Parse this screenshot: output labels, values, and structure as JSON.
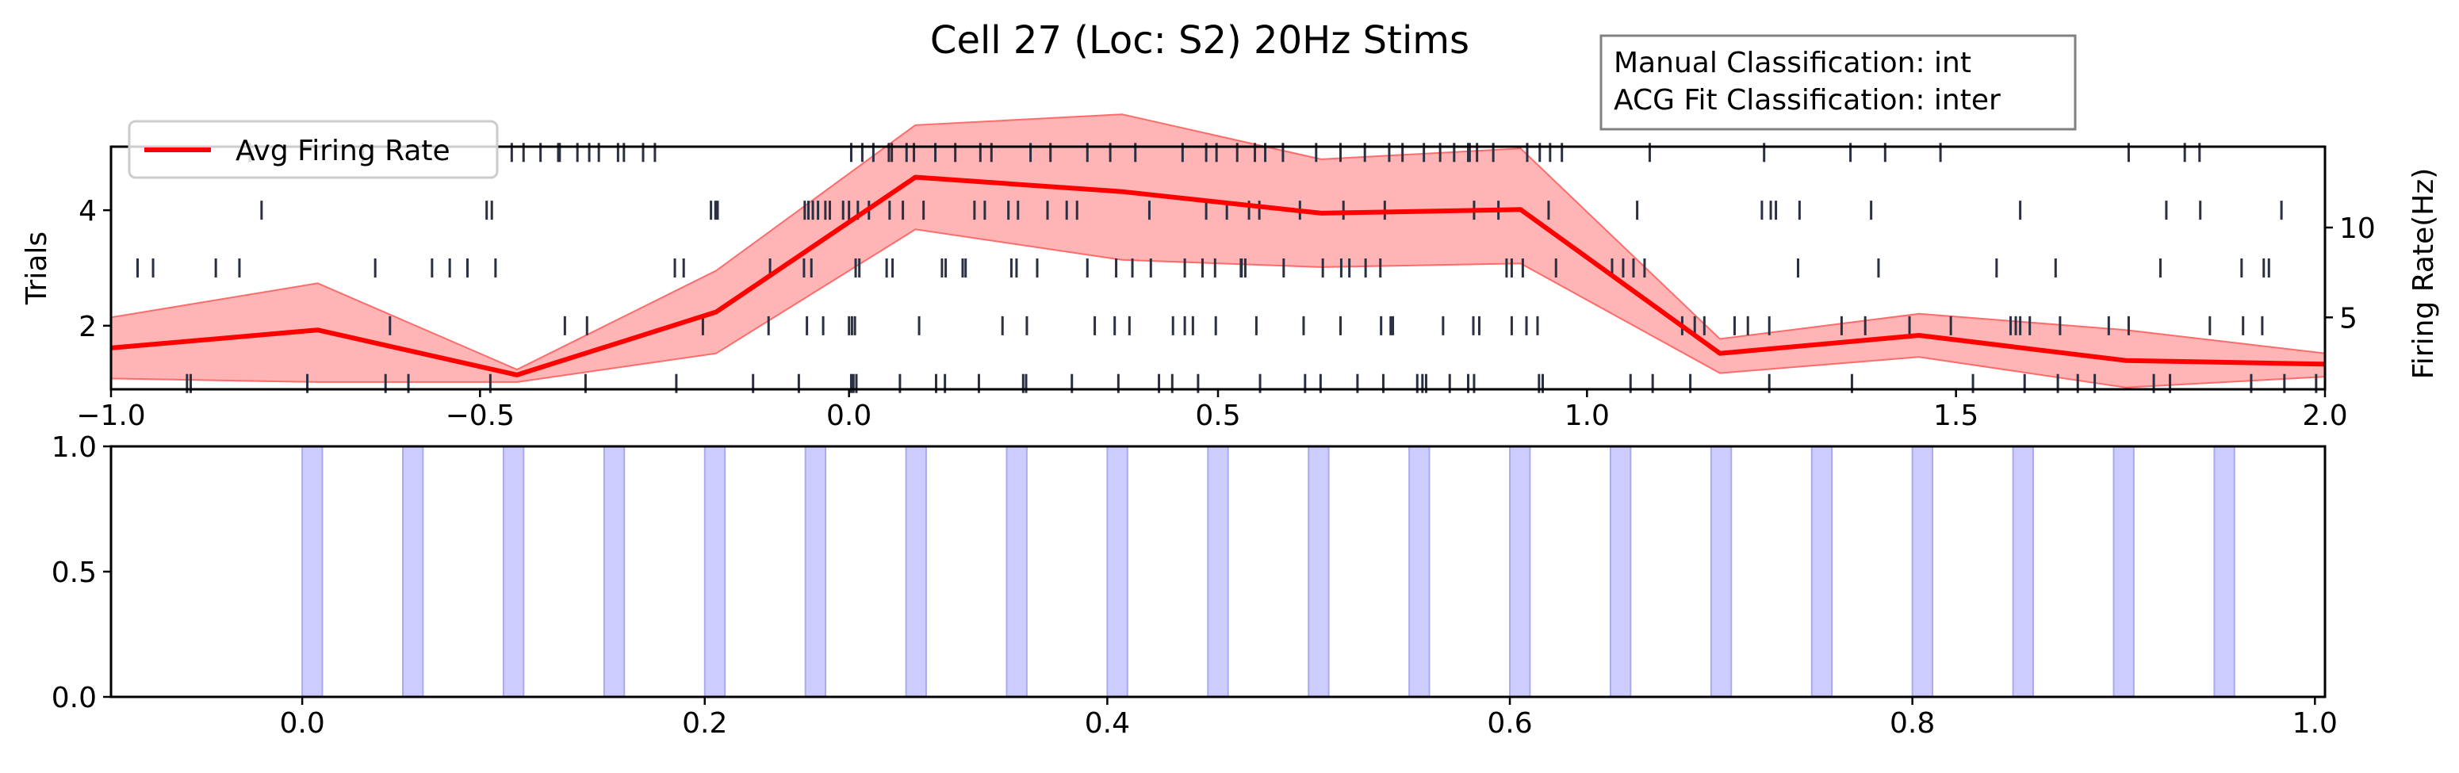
{
  "chart_data": [
    {
      "type": "line",
      "title": "Cell 27 (Loc: S2) 20Hz Stims",
      "annotation": [
        "Manual Classification: int",
        "ACG Fit Classification: inter"
      ],
      "xlim": [
        -1.0,
        2.0
      ],
      "x_ticks": [
        -1.0,
        -0.5,
        0.0,
        0.5,
        1.0,
        1.5,
        2.0
      ],
      "x_tick_labels": [
        "−1.0",
        "−0.5",
        "0.0",
        "0.5",
        "1.0",
        "1.5",
        "2.0"
      ],
      "ylabel_left": "Trials",
      "ylim_left": [
        0.9,
        5.1
      ],
      "y_left_ticks": [
        2,
        4
      ],
      "ylabel_right": "Firing Rate(Hz)",
      "ylim_right": [
        1.0,
        14.5
      ],
      "y_right_ticks": [
        5,
        10
      ],
      "legend": {
        "label": "Avg Firing Rate",
        "placement": "top-left"
      },
      "series": [
        {
          "name": "Avg Firing Rate",
          "color": "#ff0000",
          "x": [
            -1.0,
            -0.72,
            -0.45,
            -0.18,
            0.09,
            0.37,
            0.64,
            0.91,
            1.18,
            1.45,
            1.73,
            2.0
          ],
          "y": [
            3.3,
            4.3,
            1.8,
            5.3,
            12.8,
            12.0,
            10.8,
            11.0,
            3.0,
            4.0,
            2.6,
            2.4
          ],
          "upper": [
            5.0,
            6.9,
            2.1,
            7.6,
            15.7,
            16.3,
            13.8,
            14.4,
            3.8,
            5.2,
            4.3,
            3.0
          ],
          "lower": [
            1.6,
            1.4,
            1.4,
            3.0,
            9.9,
            8.2,
            7.8,
            8.0,
            1.9,
            2.8,
            1.1,
            1.7
          ],
          "band_color": "#ff6b6b"
        }
      ],
      "raster": {
        "color": "#2b2f42",
        "trials": [
          {
            "trial": 1,
            "spikes": [
              -0.897,
              -0.892,
              -0.734,
              -0.628,
              -0.597,
              -0.486,
              -0.357,
              -0.234,
              -0.13,
              -0.068,
              0.003,
              0.006,
              0.01,
              0.069,
              0.118,
              0.13,
              0.176,
              0.236,
              0.24,
              0.302,
              0.365,
              0.42,
              0.438,
              0.473,
              0.557,
              0.618,
              0.639,
              0.689,
              0.724,
              0.77,
              0.777,
              0.782,
              0.814,
              0.839,
              0.847,
              0.935,
              0.94,
              1.059,
              1.089,
              1.14,
              1.247,
              1.359,
              1.523,
              1.593,
              1.638,
              1.665,
              1.688,
              1.768,
              1.79,
              1.9,
              1.945,
              1.988
            ]
          },
          {
            "trial": 2,
            "spikes": [
              -0.622,
              -0.385,
              -0.355,
              -0.198,
              -0.109,
              -0.057,
              -0.035,
              0.0,
              0.004,
              0.008,
              0.095,
              0.208,
              0.241,
              0.333,
              0.36,
              0.38,
              0.439,
              0.455,
              0.466,
              0.497,
              0.552,
              0.616,
              0.666,
              0.721,
              0.734,
              0.737,
              0.805,
              0.846,
              0.854,
              0.898,
              0.918,
              0.933,
              1.129,
              1.146,
              1.159,
              1.2,
              1.218,
              1.247,
              1.345,
              1.377,
              1.437,
              1.493,
              1.574,
              1.581,
              1.587,
              1.6,
              1.641,
              1.707,
              1.734,
              1.844,
              1.889,
              1.915
            ]
          },
          {
            "trial": 3,
            "spikes": [
              -0.964,
              -0.943,
              -0.858,
              -0.826,
              -0.642,
              -0.565,
              -0.541,
              -0.517,
              -0.479,
              -0.236,
              -0.224,
              -0.107,
              -0.061,
              -0.051,
              0.009,
              0.014,
              0.051,
              0.059,
              0.126,
              0.131,
              0.154,
              0.158,
              0.22,
              0.227,
              0.255,
              0.323,
              0.362,
              0.384,
              0.409,
              0.455,
              0.479,
              0.496,
              0.531,
              0.532,
              0.537,
              0.589,
              0.642,
              0.667,
              0.678,
              0.7,
              0.72,
              0.891,
              0.898,
              0.913,
              0.958,
              1.034,
              1.049,
              1.063,
              1.078,
              1.286,
              1.395,
              1.555,
              1.635,
              1.777,
              1.887,
              1.917,
              1.924
            ]
          },
          {
            "trial": 4,
            "spikes": [
              -0.796,
              -0.491,
              -0.484,
              -0.187,
              -0.181,
              -0.178,
              -0.06,
              -0.055,
              -0.049,
              -0.042,
              -0.032,
              -0.026,
              -0.008,
              0.0,
              0.012,
              0.027,
              0.055,
              0.073,
              0.101,
              0.17,
              0.184,
              0.216,
              0.229,
              0.269,
              0.295,
              0.309,
              0.407,
              0.484,
              0.512,
              0.542,
              0.556,
              0.611,
              0.67,
              0.726,
              0.847,
              0.88,
              0.948,
              1.068,
              1.237,
              1.249,
              1.256,
              1.288,
              1.385,
              1.587,
              1.785,
              1.831,
              1.941
            ]
          },
          {
            "trial": 5,
            "spikes": [
              -0.812,
              -0.659,
              -0.457,
              -0.441,
              -0.418,
              -0.394,
              -0.392,
              -0.368,
              -0.352,
              -0.339,
              -0.313,
              -0.305,
              -0.279,
              -0.263,
              0.003,
              0.018,
              0.033,
              0.054,
              0.058,
              0.078,
              0.088,
              0.117,
              0.144,
              0.178,
              0.193,
              0.246,
              0.273,
              0.323,
              0.354,
              0.388,
              0.452,
              0.484,
              0.498,
              0.526,
              0.55,
              0.564,
              0.588,
              0.633,
              0.666,
              0.699,
              0.732,
              0.75,
              0.779,
              0.801,
              0.82,
              0.839,
              0.841,
              0.851,
              0.873,
              0.919,
              0.936,
              0.95,
              0.966,
              1.085,
              1.24,
              1.357,
              1.404,
              1.479,
              1.734,
              1.81,
              1.83
            ]
          }
        ]
      }
    },
    {
      "type": "bar",
      "title": "",
      "xlim": [
        -0.095,
        1.005
      ],
      "x_ticks": [
        0.0,
        0.2,
        0.4,
        0.6,
        0.8,
        1.0
      ],
      "x_tick_labels": [
        "0.0",
        "0.2",
        "0.4",
        "0.6",
        "0.8",
        "1.0"
      ],
      "ylim": [
        0.0,
        1.0
      ],
      "y_ticks": [
        0.0,
        0.5,
        1.0
      ],
      "y_tick_labels": [
        "0.0",
        "0.5",
        "1.0"
      ],
      "stimulus_width": 0.01,
      "stimulus_color": "#ccccff",
      "stimulus_starts": [
        0.0,
        0.05,
        0.1,
        0.15,
        0.2,
        0.25,
        0.3,
        0.35,
        0.4,
        0.45,
        0.5,
        0.55,
        0.6,
        0.65,
        0.7,
        0.75,
        0.8,
        0.85,
        0.9,
        0.95
      ]
    }
  ]
}
